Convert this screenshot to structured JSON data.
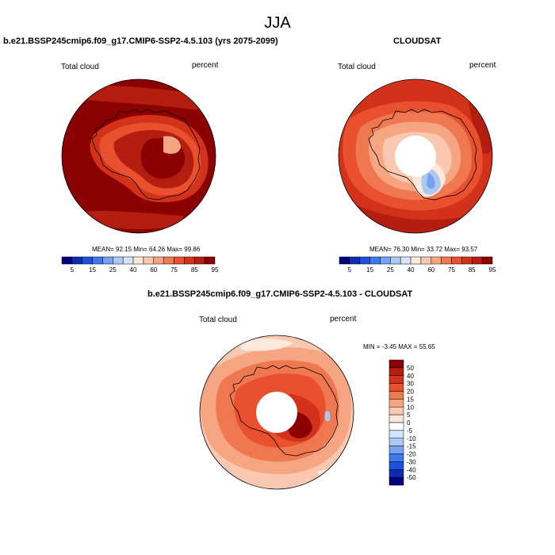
{
  "title": "JJA",
  "panels": [
    {
      "id": "model",
      "title": "b.e21.BSSP245cmip6.f09_g17.CMIP6-SSP2-4.5.103 (yrs 2075-2099)",
      "left_label": "Total cloud",
      "right_label": "percent",
      "stats": "MEAN=  92.15  Min=  64.26  Max=  99.86"
    },
    {
      "id": "obs",
      "title": "CLOUDSAT",
      "left_label": "Total cloud",
      "right_label": "percent",
      "stats": "MEAN=  76.30  Min=  33.72  Max=  93.57"
    },
    {
      "id": "diff",
      "title": "b.e21.BSSP245cmip6.f09_g17.CMIP6-SSP2-4.5.103 - CLOUDSAT",
      "left_label": "Total cloud",
      "right_label": "percent",
      "stats": "MIN =  -3.45 MAX =  55.65"
    }
  ],
  "colorbar_main": {
    "labels": [
      "5",
      "15",
      "25",
      "40",
      "60",
      "75",
      "85",
      "95"
    ],
    "colors": [
      "#000080",
      "#0a2db4",
      "#1e50dc",
      "#3c78f0",
      "#78a0f0",
      "#aac8f0",
      "#d2e4f8",
      "#fde8dc",
      "#f8c8b0",
      "#f5a582",
      "#f07850",
      "#e8502e",
      "#d2321a",
      "#b41e10",
      "#8b0000"
    ]
  },
  "colorbar_diff": {
    "labels": [
      "50",
      "40",
      "30",
      "20",
      "15",
      "10",
      "5",
      "0",
      "-5",
      "-10",
      "-15",
      "-20",
      "-30",
      "-40",
      "-50"
    ],
    "colors": [
      "#8b0000",
      "#b41e10",
      "#d2321a",
      "#e8502e",
      "#f07850",
      "#f5a582",
      "#f8c8b0",
      "#fde8dc",
      "#ffffff",
      "#d2e4f8",
      "#aac8f0",
      "#78a0f0",
      "#3c78f0",
      "#1e50dc",
      "#0a2db4",
      "#000080"
    ]
  }
}
